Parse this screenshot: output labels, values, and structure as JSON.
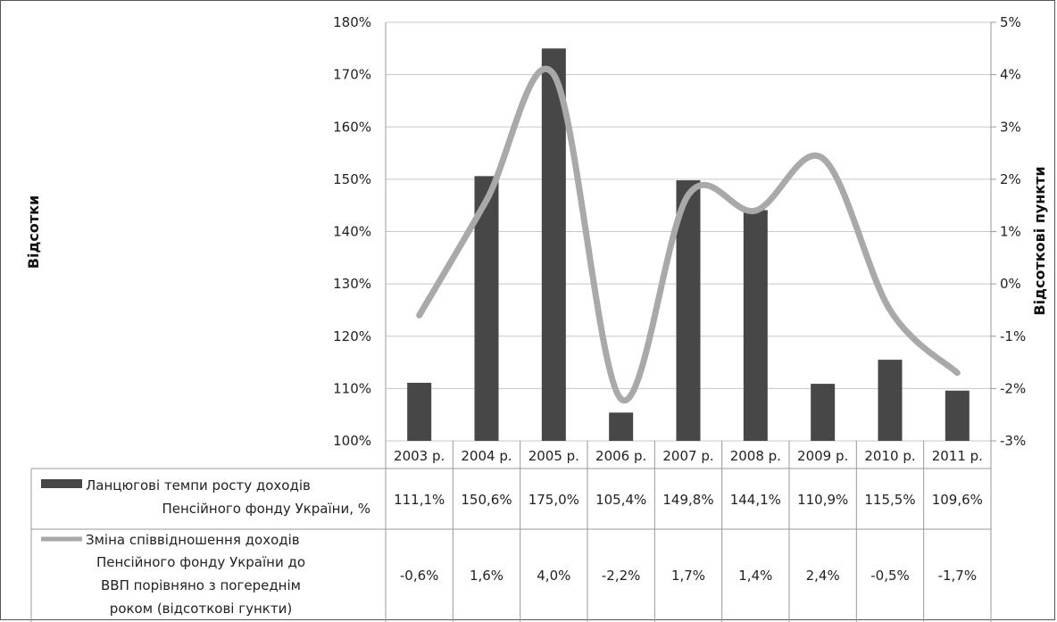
{
  "chart_data": {
    "type": "bar+line",
    "categories": [
      "2003 р.",
      "2004 р.",
      "2005 р.",
      "2006 р.",
      "2007 р.",
      "2008 р.",
      "2009 р.",
      "2010 р.",
      "2011 р."
    ],
    "y_left": {
      "label": "Відсотки",
      "lim": [
        100,
        180
      ],
      "ticks": [
        "100%",
        "110%",
        "120%",
        "130%",
        "140%",
        "150%",
        "160%",
        "170%",
        "180%"
      ]
    },
    "y_right": {
      "label": "Відсоткові пункти",
      "lim": [
        -3,
        5
      ],
      "ticks": [
        "-3%",
        "-2%",
        "-1%",
        "0%",
        "1%",
        "2%",
        "3%",
        "4%",
        "5%"
      ]
    },
    "series": [
      {
        "name": "Ланцюгові темпи росту доходів Пенсійного фонду України, %",
        "type": "bar",
        "axis": "left",
        "color": "#474747",
        "values": [
          111.1,
          150.6,
          175.0,
          105.4,
          149.8,
          144.1,
          110.9,
          115.5,
          109.6
        ],
        "labels": [
          "111,1%",
          "150,6%",
          "175,0%",
          "105,4%",
          "149,8%",
          "144,1%",
          "110,9%",
          "115,5%",
          "109,6%"
        ]
      },
      {
        "name": "Зміна співвідношення доходів Пенсійного фонду України до ВВП порівняно з погереднім роком (відсоткові гункти)",
        "type": "line",
        "axis": "right",
        "color": "#a9a9a9",
        "values": [
          -0.6,
          1.6,
          4.0,
          -2.2,
          1.7,
          1.4,
          2.4,
          -0.5,
          -1.7
        ],
        "labels": [
          "-0,6%",
          "1,6%",
          "4,0%",
          "-2,2%",
          "1,7%",
          "1,4%",
          "2,4%",
          "-0,5%",
          "-1,7%"
        ]
      }
    ],
    "legend_text": {
      "bar": [
        "Ланцюгові темпи росту доходів",
        "Пенсійного фонду України, %"
      ],
      "line": [
        "Зміна співвідношення доходів",
        "Пенсійного фонду України до",
        "ВВП порівняно з погереднім",
        "роком (відсоткові гункти)"
      ]
    },
    "grid": true,
    "legend_position": "data-table"
  }
}
